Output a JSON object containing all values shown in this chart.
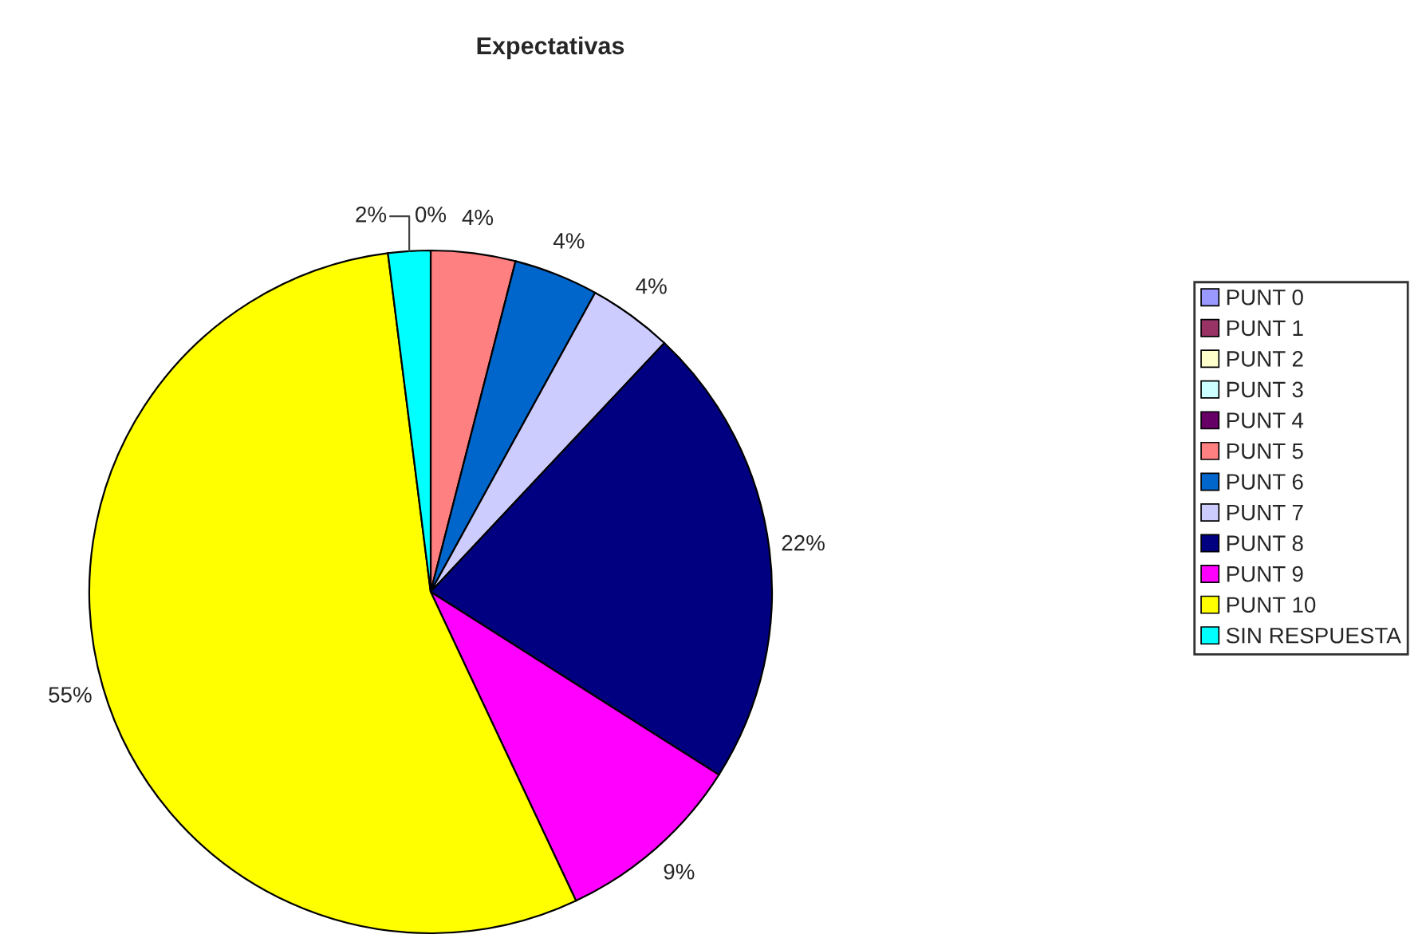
{
  "chart_data": {
    "type": "pie",
    "title": "Expectativas",
    "categories": [
      "PUNT 0",
      "PUNT 1",
      "PUNT 2",
      "PUNT 3",
      "PUNT 4",
      "PUNT 5",
      "PUNT 6",
      "PUNT 7",
      "PUNT 8",
      "PUNT 9",
      "PUNT 10",
      "SIN RESPUESTA"
    ],
    "values": [
      0,
      0,
      0,
      0,
      0,
      4,
      4,
      4,
      22,
      9,
      55,
      2
    ],
    "colors": [
      "#9999ff",
      "#993366",
      "#ffffcc",
      "#ccffff",
      "#660066",
      "#ff8080",
      "#0066cc",
      "#ccccff",
      "#000080",
      "#ff00ff",
      "#ffff00",
      "#00ffff"
    ],
    "value_labels": [
      null,
      null,
      null,
      null,
      "0%",
      "4%",
      "4%",
      "4%",
      "22%",
      "9%",
      "55%",
      "2%"
    ],
    "legend": "right"
  }
}
